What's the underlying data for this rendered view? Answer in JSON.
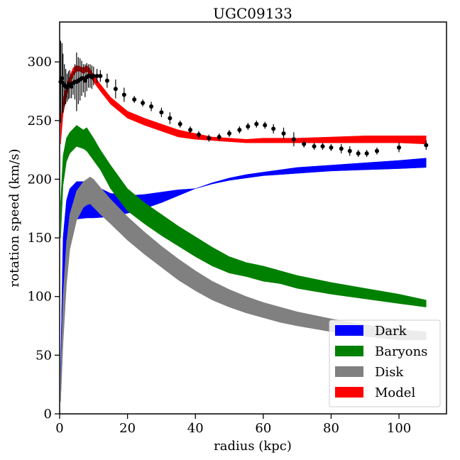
{
  "chart_data": {
    "type": "area",
    "title": "UGC09133",
    "xlabel": "radius (kpc)",
    "ylabel": "rotation speed (km/s)",
    "xlim": [
      0,
      114
    ],
    "ylim": [
      0,
      334
    ],
    "xticks": [
      0,
      20,
      40,
      60,
      80,
      100
    ],
    "yticks": [
      0,
      50,
      100,
      150,
      200,
      250,
      300
    ],
    "legend_position": "bottom-right",
    "series": [
      {
        "name": "Dark",
        "color": "#0000ff",
        "x": [
          0.3,
          1,
          2,
          3,
          5,
          8,
          10,
          15,
          20,
          25,
          30,
          35,
          40,
          45,
          50,
          55,
          60,
          65,
          70,
          80,
          90,
          100,
          108
        ],
        "lower": [
          20,
          100,
          148,
          160,
          166,
          167,
          167,
          168,
          171,
          175,
          180,
          186,
          192,
          196,
          199,
          201,
          203,
          204,
          205,
          207,
          208,
          209,
          210
        ],
        "upper": [
          40,
          150,
          182,
          192,
          198,
          198,
          195,
          188,
          186,
          187,
          189,
          191,
          192,
          197,
          201,
          204,
          206,
          208,
          210,
          212,
          214,
          216,
          218
        ]
      },
      {
        "name": "Baryons",
        "color": "#008000",
        "x": [
          0.3,
          1,
          2,
          3,
          5,
          7,
          8,
          10,
          12,
          15,
          20,
          25,
          30,
          35,
          40,
          45,
          50,
          55,
          60,
          65,
          70,
          80,
          90,
          100,
          108
        ],
        "lower": [
          150,
          195,
          215,
          222,
          228,
          226,
          224,
          216,
          208,
          192,
          173,
          162,
          152,
          143,
          134,
          126,
          120,
          117,
          113,
          111,
          107,
          102,
          98,
          94,
          91
        ],
        "upper": [
          180,
          220,
          235,
          240,
          246,
          242,
          244,
          235,
          225,
          212,
          192,
          180,
          170,
          160,
          151,
          142,
          134,
          129,
          126,
          122,
          118,
          112,
          107,
          102,
          97
        ]
      },
      {
        "name": "Disk",
        "color": "#808080",
        "x": [
          0.3,
          1,
          2,
          3,
          5,
          7,
          8,
          9,
          10,
          12,
          15,
          20,
          25,
          30,
          35,
          40,
          45,
          50,
          55,
          60,
          65,
          70,
          80,
          90,
          100,
          108
        ],
        "lower": [
          10,
          60,
          110,
          140,
          165,
          176,
          178,
          179,
          176,
          170,
          162,
          148,
          136,
          125,
          114,
          105,
          97,
          91,
          86,
          82,
          78,
          75,
          70,
          66,
          63,
          63
        ],
        "upper": [
          30,
          100,
          145,
          170,
          190,
          198,
          200,
          202,
          200,
          193,
          183,
          168,
          155,
          143,
          132,
          122,
          113,
          106,
          100,
          95,
          91,
          87,
          81,
          76,
          72,
          70
        ]
      },
      {
        "name": "Model",
        "color": "#ff0000",
        "x": [
          0.3,
          1,
          2,
          3,
          4,
          5,
          6,
          7,
          8,
          9,
          10,
          12,
          15,
          20,
          25,
          30,
          35,
          40,
          45,
          50,
          55,
          60,
          65,
          70,
          80,
          90,
          100,
          108
        ],
        "lower": [
          230,
          255,
          270,
          280,
          288,
          292,
          292,
          290,
          292,
          289,
          283,
          275,
          264,
          252,
          246,
          241,
          236,
          234,
          233,
          232,
          231,
          231,
          231,
          231,
          231,
          231,
          231,
          230
        ],
        "upper": [
          250,
          268,
          280,
          288,
          295,
          297,
          296,
          295,
          297,
          294,
          289,
          281,
          270,
          258,
          252,
          247,
          242,
          239,
          236,
          235,
          234,
          235,
          235,
          235,
          236,
          237,
          237,
          237
        ]
      }
    ],
    "observations": {
      "name": "data",
      "color": "#000000",
      "x": [
        0.3,
        0.7,
        1,
        1.4,
        1.8,
        2.2,
        2.6,
        3,
        3.5,
        4,
        4.5,
        5,
        5.5,
        6,
        6.5,
        7,
        7.5,
        8,
        8.5,
        9,
        9.5,
        10,
        11,
        12,
        14,
        16.5,
        19,
        22,
        24.5,
        27,
        30,
        32.5,
        35.5,
        38.5,
        41,
        44,
        47,
        50,
        53,
        55.5,
        58,
        60.5,
        63,
        66,
        69,
        72,
        75,
        77.5,
        80,
        83,
        85.5,
        88,
        90.5,
        93.5,
        100,
        108
      ],
      "y": [
        283,
        286,
        282,
        280,
        279,
        278,
        280,
        281,
        279,
        282,
        283,
        283,
        284,
        285,
        286,
        286,
        284,
        287,
        288,
        288,
        287,
        288,
        288,
        288,
        284,
        277,
        272,
        268,
        265,
        262,
        257,
        252,
        247,
        242,
        238,
        235,
        236,
        239,
        242,
        245,
        247,
        246,
        243,
        239,
        234,
        230,
        228,
        228,
        227,
        226,
        224,
        222,
        222,
        224,
        227,
        229
      ],
      "err": [
        35,
        30,
        25,
        18,
        15,
        12,
        12,
        12,
        10,
        10,
        15,
        25,
        20,
        18,
        15,
        12,
        14,
        12,
        10,
        10,
        10,
        8,
        6,
        5,
        6,
        8,
        6,
        3,
        3,
        4,
        4,
        5,
        3,
        3,
        3,
        3,
        3,
        3,
        3,
        3,
        3,
        3,
        4,
        5,
        6,
        3,
        3,
        3,
        3,
        4,
        4,
        3,
        3,
        3,
        4,
        4
      ]
    }
  }
}
